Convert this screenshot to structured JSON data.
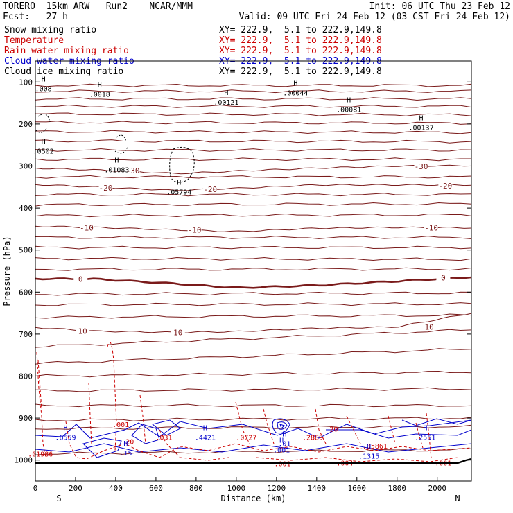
{
  "header": {
    "model": "TORERO  15km ARW   Run2    NCAR/MMM",
    "init": "Init: 06 UTC Thu 23 Feb 12",
    "fcst": "Fcst:   27 h",
    "valid": "Valid: 09 UTC Fri 24 Feb 12 (03 CST Fri 24 Feb 12)"
  },
  "fields": [
    {
      "name": "Snow mixing ratio",
      "xy": "XY= 222.9,  5.1 to 222.9,149.8",
      "color": "#000000"
    },
    {
      "name": "Temperature",
      "xy": "XY= 222.9,  5.1 to 222.9,149.8",
      "color": "#cc0000"
    },
    {
      "name": "Rain water mixing ratio",
      "xy": "XY= 222.9,  5.1 to 222.9,149.8",
      "color": "#cc0000"
    },
    {
      "name": "Cloud water mixing ratio",
      "xy": "XY= 222.9,  5.1 to 222.9,149.8",
      "color": "#0000cc"
    },
    {
      "name": "Cloud ice mixing ratio",
      "xy": "XY= 222.9,  5.1 to 222.9,149.8",
      "color": "#000000"
    }
  ],
  "chart_data": {
    "type": "contour-cross-section",
    "xlabel": "Distance (km)",
    "ylabel": "Pressure (hPa)",
    "xlim": [
      0,
      2170
    ],
    "ylim": [
      1050,
      50
    ],
    "x_ticks": [
      0,
      200,
      400,
      600,
      800,
      1000,
      1200,
      1400,
      1600,
      1800,
      2000
    ],
    "y_ticks": [
      100,
      200,
      300,
      400,
      500,
      600,
      700,
      800,
      900,
      1000
    ],
    "left_end": "S",
    "right_end": "N",
    "temperature_isotherms": [
      {
        "label": "-30",
        "points": [
          [
            0,
            305
          ],
          [
            400,
            311
          ],
          [
            700,
            318
          ],
          [
            1000,
            312
          ],
          [
            1400,
            305
          ],
          [
            1800,
            300
          ],
          [
            2170,
            299
          ]
        ],
        "labels": [
          [
            485,
            311
          ],
          [
            1920,
            301
          ]
        ]
      },
      {
        "label": "-20",
        "points": [
          [
            0,
            344
          ],
          [
            300,
            350
          ],
          [
            700,
            358
          ],
          [
            1000,
            353
          ],
          [
            1400,
            345
          ],
          [
            1800,
            345
          ],
          [
            2170,
            345
          ]
        ],
        "labels": [
          [
            350,
            352
          ],
          [
            870,
            355
          ],
          [
            2040,
            347
          ]
        ]
      },
      {
        "label": "-10",
        "points": [
          [
            0,
            443
          ],
          [
            300,
            446
          ],
          [
            700,
            452
          ],
          [
            1000,
            456
          ],
          [
            1400,
            448
          ],
          [
            1800,
            446
          ],
          [
            2170,
            447
          ]
        ],
        "labels": [
          [
            255,
            447
          ],
          [
            792,
            452
          ],
          [
            1970,
            447
          ]
        ]
      },
      {
        "label": "0",
        "points": [
          [
            0,
            568
          ],
          [
            300,
            569
          ],
          [
            700,
            580
          ],
          [
            1000,
            590
          ],
          [
            1400,
            584
          ],
          [
            1800,
            574
          ],
          [
            2170,
            564
          ]
        ],
        "labels": [
          [
            225,
            569
          ],
          [
            2030,
            566
          ]
        ]
      },
      {
        "label": "10",
        "points": [
          [
            0,
            684
          ],
          [
            300,
            693
          ],
          [
            700,
            696
          ],
          [
            1000,
            694
          ],
          [
            1400,
            686
          ],
          [
            1800,
            683
          ],
          [
            2170,
            650
          ]
        ],
        "labels": [
          [
            235,
            693
          ],
          [
            710,
            696
          ],
          [
            1960,
            683
          ]
        ]
      }
    ],
    "snow_labels": [
      {
        "value": ".0018",
        "x": 320,
        "p": 128
      },
      {
        "value": ".00121",
        "x": 950,
        "p": 147
      },
      {
        "value": ".00044",
        "x": 1295,
        "p": 125
      },
      {
        "value": ".00081",
        "x": 1560,
        "p": 165
      },
      {
        "value": ".00137",
        "x": 1920,
        "p": 208
      },
      {
        "value": ".0502",
        "x": 40,
        "p": 264
      },
      {
        "value": ".01083",
        "x": 405,
        "p": 308
      }
    ],
    "ice_labels": [
      {
        "value": ".008",
        "x": 40,
        "p": 115
      },
      {
        "value": ".05794",
        "x": 715,
        "p": 361
      }
    ],
    "rain_labels": [
      {
        "value": ".001",
        "x": 425,
        "p": 915
      },
      {
        "value": ".01986",
        "x": 25,
        "p": 985
      },
      {
        "value": ".031",
        "x": 640,
        "p": 945
      },
      {
        "value": ".0727",
        "x": 1050,
        "p": 945
      },
      {
        "value": ".2889",
        "x": 1380,
        "p": 945
      },
      {
        "value": ".05861",
        "x": 1690,
        "p": 966
      },
      {
        "value": ".001",
        "x": 1230,
        "p": 1008
      },
      {
        "value": ".004",
        "x": 1540,
        "p": 1006
      },
      {
        "value": ".001",
        "x": 2030,
        "p": 1006
      },
      {
        "value": "20",
        "x": 470,
        "p": 955
      },
      {
        "value": "20",
        "x": 1485,
        "p": 925
      }
    ],
    "cloud_water_labels": [
      {
        "value": ".6559",
        "x": 150,
        "p": 945
      },
      {
        "value": ".15",
        "x": 450,
        "p": 982
      },
      {
        "value": ".4421",
        "x": 845,
        "p": 945
      },
      {
        "value": ".01",
        "x": 1240,
        "p": 960
      },
      {
        "value": ".001",
        "x": 1225,
        "p": 975
      },
      {
        "value": ".1315",
        "x": 1660,
        "p": 990
      },
      {
        "value": ".2551",
        "x": 1940,
        "p": 945
      }
    ]
  }
}
